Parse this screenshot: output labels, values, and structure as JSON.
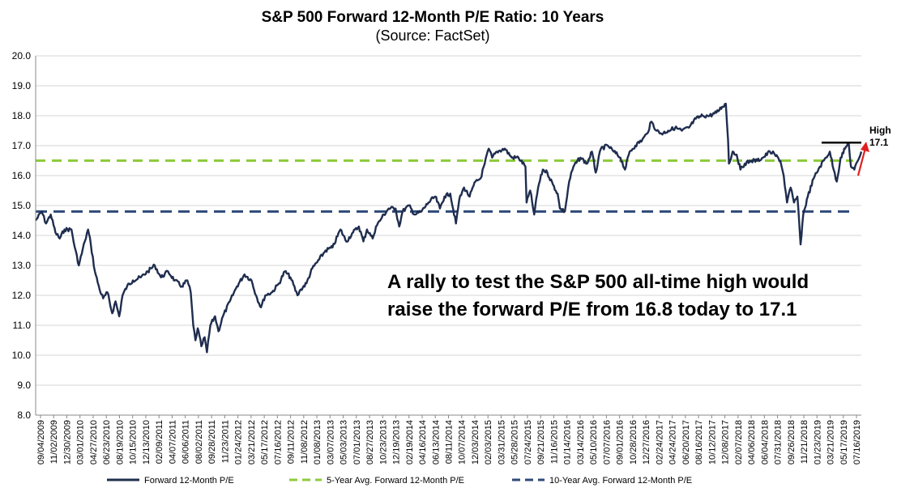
{
  "chart_data": {
    "type": "line",
    "title": "S&P 500 Forward 12-Month P/E Ratio: 10 Years",
    "subtitle": "(Source: FactSet)",
    "ylim": [
      8.0,
      20.0
    ],
    "yticks": [
      "8.0",
      "9.0",
      "10.0",
      "11.0",
      "12.0",
      "13.0",
      "14.0",
      "15.0",
      "16.0",
      "17.0",
      "18.0",
      "19.0",
      "20.0"
    ],
    "x_start": "2009-09-04",
    "x_end": "2019-09-20",
    "xtick_labels": [
      "09/04/2009",
      "11/02/2009",
      "12/30/2009",
      "03/01/2010",
      "04/27/2010",
      "06/23/2010",
      "08/19/2010",
      "10/15/2010",
      "12/13/2010",
      "02/09/2011",
      "04/07/2011",
      "06/06/2011",
      "08/02/2011",
      "09/28/2011",
      "11/23/2011",
      "01/24/2012",
      "03/21/2012",
      "05/17/2012",
      "07/16/2012",
      "09/11/2012",
      "11/08/2012",
      "01/08/2013",
      "03/07/2013",
      "05/03/2013",
      "07/01/2013",
      "08/27/2013",
      "10/23/2013",
      "12/19/2013",
      "02/19/2014",
      "04/16/2014",
      "06/13/2014",
      "08/11/2014",
      "10/07/2014",
      "12/03/2014",
      "02/03/2015",
      "03/31/2015",
      "05/28/2015",
      "07/24/2015",
      "09/21/2015",
      "11/16/2015",
      "01/14/2016",
      "03/14/2016",
      "05/10/2016",
      "07/07/2016",
      "09/01/2016",
      "10/28/2016",
      "12/27/2016",
      "02/24/2017",
      "04/24/2017",
      "06/20/2017",
      "08/16/2017",
      "10/12/2017",
      "12/08/2017",
      "02/07/2018",
      "04/06/2018",
      "06/04/2018",
      "07/31/2018",
      "09/26/2018",
      "11/21/2018",
      "01/23/2019",
      "03/21/2019",
      "05/17/2019",
      "07/16/2019"
    ],
    "series": [
      {
        "name": "Forward 12-Month P/E",
        "color": "#1f2d4e",
        "style": "solid",
        "points": [
          [
            "2009-09-04",
            14.5
          ],
          [
            "2009-10-01",
            14.8
          ],
          [
            "2009-10-20",
            14.4
          ],
          [
            "2009-11-10",
            14.7
          ],
          [
            "2009-12-01",
            14.1
          ],
          [
            "2009-12-20",
            13.9
          ],
          [
            "2010-01-10",
            14.2
          ],
          [
            "2010-02-10",
            14.2
          ],
          [
            "2010-02-25",
            13.6
          ],
          [
            "2010-03-15",
            13.0
          ],
          [
            "2010-04-10",
            13.8
          ],
          [
            "2010-04-25",
            14.2
          ],
          [
            "2010-05-07",
            13.7
          ],
          [
            "2010-05-25",
            12.8
          ],
          [
            "2010-06-15",
            12.2
          ],
          [
            "2010-07-01",
            11.9
          ],
          [
            "2010-07-20",
            12.1
          ],
          [
            "2010-08-10",
            11.4
          ],
          [
            "2010-08-25",
            11.8
          ],
          [
            "2010-09-10",
            11.3
          ],
          [
            "2010-09-25",
            12.0
          ],
          [
            "2010-10-15",
            12.3
          ],
          [
            "2010-11-10",
            12.5
          ],
          [
            "2010-12-15",
            12.6
          ],
          [
            "2011-01-15",
            12.8
          ],
          [
            "2011-02-15",
            13.0
          ],
          [
            "2011-03-15",
            12.6
          ],
          [
            "2011-04-15",
            12.8
          ],
          [
            "2011-05-15",
            12.5
          ],
          [
            "2011-06-15",
            12.3
          ],
          [
            "2011-07-10",
            12.5
          ],
          [
            "2011-07-25",
            12.1
          ],
          [
            "2011-08-05",
            11.0
          ],
          [
            "2011-08-15",
            10.5
          ],
          [
            "2011-08-25",
            10.9
          ],
          [
            "2011-09-10",
            10.3
          ],
          [
            "2011-09-25",
            10.6
          ],
          [
            "2011-10-05",
            10.1
          ],
          [
            "2011-10-20",
            11.0
          ],
          [
            "2011-11-10",
            11.3
          ],
          [
            "2011-11-25",
            10.8
          ],
          [
            "2011-12-15",
            11.3
          ],
          [
            "2012-01-15",
            11.8
          ],
          [
            "2012-02-15",
            12.3
          ],
          [
            "2012-03-20",
            12.7
          ],
          [
            "2012-04-20",
            12.5
          ],
          [
            "2012-05-10",
            12.0
          ],
          [
            "2012-06-01",
            11.6
          ],
          [
            "2012-06-20",
            12.0
          ],
          [
            "2012-07-20",
            12.1
          ],
          [
            "2012-08-20",
            12.4
          ],
          [
            "2012-09-15",
            12.8
          ],
          [
            "2012-10-10",
            12.6
          ],
          [
            "2012-11-10",
            12.0
          ],
          [
            "2012-11-25",
            12.2
          ],
          [
            "2012-12-20",
            12.4
          ],
          [
            "2013-01-15",
            12.9
          ],
          [
            "2013-02-15",
            13.2
          ],
          [
            "2013-03-15",
            13.5
          ],
          [
            "2013-04-15",
            13.6
          ],
          [
            "2013-05-20",
            14.2
          ],
          [
            "2013-06-15",
            13.8
          ],
          [
            "2013-07-15",
            14.1
          ],
          [
            "2013-08-10",
            14.3
          ],
          [
            "2013-08-30",
            13.8
          ],
          [
            "2013-09-15",
            14.2
          ],
          [
            "2013-10-10",
            13.9
          ],
          [
            "2013-10-25",
            14.3
          ],
          [
            "2013-11-20",
            14.6
          ],
          [
            "2013-12-20",
            14.9
          ],
          [
            "2014-01-20",
            14.9
          ],
          [
            "2014-02-05",
            14.3
          ],
          [
            "2014-02-20",
            14.8
          ],
          [
            "2014-03-20",
            15.0
          ],
          [
            "2014-04-15",
            14.7
          ],
          [
            "2014-05-15",
            14.8
          ],
          [
            "2014-06-15",
            15.1
          ],
          [
            "2014-07-15",
            15.3
          ],
          [
            "2014-08-05",
            14.9
          ],
          [
            "2014-08-25",
            15.3
          ],
          [
            "2014-09-20",
            15.4
          ],
          [
            "2014-10-15",
            14.4
          ],
          [
            "2014-10-30",
            15.2
          ],
          [
            "2014-11-20",
            15.6
          ],
          [
            "2014-12-15",
            15.3
          ],
          [
            "2015-01-10",
            15.8
          ],
          [
            "2015-02-01",
            15.9
          ],
          [
            "2015-02-20",
            16.4
          ],
          [
            "2015-03-10",
            16.9
          ],
          [
            "2015-03-25",
            16.6
          ],
          [
            "2015-04-15",
            16.8
          ],
          [
            "2015-05-20",
            16.9
          ],
          [
            "2015-06-20",
            16.6
          ],
          [
            "2015-07-20",
            16.6
          ],
          [
            "2015-08-20",
            16.3
          ],
          [
            "2015-08-25",
            15.1
          ],
          [
            "2015-09-10",
            15.5
          ],
          [
            "2015-09-28",
            14.7
          ],
          [
            "2015-10-15",
            15.6
          ],
          [
            "2015-11-05",
            16.2
          ],
          [
            "2015-11-25",
            16.1
          ],
          [
            "2015-12-20",
            15.7
          ],
          [
            "2016-01-10",
            15.4
          ],
          [
            "2016-01-20",
            14.9
          ],
          [
            "2016-02-11",
            14.8
          ],
          [
            "2016-03-01",
            15.8
          ],
          [
            "2016-03-20",
            16.3
          ],
          [
            "2016-04-20",
            16.6
          ],
          [
            "2016-05-20",
            16.4
          ],
          [
            "2016-06-10",
            16.8
          ],
          [
            "2016-06-27",
            16.1
          ],
          [
            "2016-07-20",
            16.9
          ],
          [
            "2016-08-20",
            17.0
          ],
          [
            "2016-09-15",
            16.8
          ],
          [
            "2016-10-15",
            16.6
          ],
          [
            "2016-11-04",
            16.2
          ],
          [
            "2016-11-25",
            16.8
          ],
          [
            "2016-12-20",
            17.0
          ],
          [
            "2017-01-20",
            17.2
          ],
          [
            "2017-02-10",
            17.4
          ],
          [
            "2017-03-01",
            17.8
          ],
          [
            "2017-03-25",
            17.5
          ],
          [
            "2017-04-15",
            17.4
          ],
          [
            "2017-05-15",
            17.5
          ],
          [
            "2017-06-15",
            17.6
          ],
          [
            "2017-07-15",
            17.5
          ],
          [
            "2017-08-15",
            17.6
          ],
          [
            "2017-09-15",
            17.9
          ],
          [
            "2017-10-15",
            18.0
          ],
          [
            "2017-11-15",
            18.0
          ],
          [
            "2017-12-15",
            18.1
          ],
          [
            "2018-01-10",
            18.3
          ],
          [
            "2018-01-26",
            18.4
          ],
          [
            "2018-02-05",
            17.2
          ],
          [
            "2018-02-09",
            16.4
          ],
          [
            "2018-02-25",
            16.8
          ],
          [
            "2018-03-15",
            16.7
          ],
          [
            "2018-04-01",
            16.2
          ],
          [
            "2018-04-20",
            16.4
          ],
          [
            "2018-05-20",
            16.5
          ],
          [
            "2018-06-15",
            16.5
          ],
          [
            "2018-07-10",
            16.6
          ],
          [
            "2018-08-10",
            16.8
          ],
          [
            "2018-09-01",
            16.7
          ],
          [
            "2018-09-25",
            16.5
          ],
          [
            "2018-10-10",
            16.0
          ],
          [
            "2018-10-25",
            15.1
          ],
          [
            "2018-11-10",
            15.6
          ],
          [
            "2018-11-25",
            15.1
          ],
          [
            "2018-12-10",
            15.3
          ],
          [
            "2018-12-24",
            13.7
          ],
          [
            "2019-01-05",
            14.7
          ],
          [
            "2019-01-25",
            15.3
          ],
          [
            "2019-02-20",
            15.9
          ],
          [
            "2019-03-20",
            16.3
          ],
          [
            "2019-04-15",
            16.6
          ],
          [
            "2019-05-03",
            16.8
          ],
          [
            "2019-05-20",
            16.2
          ],
          [
            "2019-06-03",
            15.8
          ],
          [
            "2019-06-20",
            16.6
          ],
          [
            "2019-07-10",
            16.9
          ],
          [
            "2019-07-26",
            17.1
          ],
          [
            "2019-08-05",
            16.3
          ],
          [
            "2019-08-20",
            16.2
          ],
          [
            "2019-09-05",
            16.5
          ],
          [
            "2019-09-20",
            16.8
          ]
        ]
      },
      {
        "name": "5-Year Avg. Forward 12-Month P/E",
        "color": "#8ecb3c",
        "style": "dashed",
        "value": 16.5
      },
      {
        "name": "10-Year Avg. Forward 12-Month P/E",
        "color": "#2e4a7a",
        "style": "dashed",
        "value": 14.8
      }
    ],
    "annotations": {
      "main_line1": "A rally to test the S&P 500 all-time high would",
      "main_line2": "raise the forward P/E from 16.8 today to 17.1",
      "high_label_line1": "High",
      "high_label_line2": "17.1",
      "high_value": 17.1,
      "arrow_color": "#e02020"
    },
    "legend": [
      "Forward 12-Month P/E",
      "5-Year Avg. Forward 12-Month P/E",
      "10-Year Avg. Forward 12-Month P/E"
    ]
  }
}
